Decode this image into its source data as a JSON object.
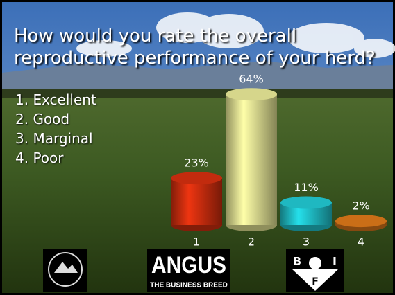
{
  "chart_data": {
    "type": "bar",
    "title": "How would you rate the overall reproductive performance of your herd?",
    "options": [
      "1. Excellent",
      "2. Good",
      "3. Marginal",
      "4. Poor"
    ],
    "categories": [
      "1",
      "2",
      "3",
      "4"
    ],
    "values": [
      23,
      64,
      11,
      2
    ],
    "value_labels": [
      "23%",
      "64%",
      "11%",
      "2%"
    ],
    "colors": [
      "#d8300f",
      "#eeee9a",
      "#22ccd6",
      "#e07a1a"
    ]
  },
  "logos": {
    "angus": "ANGUS",
    "angus_tagline": "THE BUSINESS BREED",
    "bif": [
      "B",
      "I",
      "F"
    ]
  }
}
